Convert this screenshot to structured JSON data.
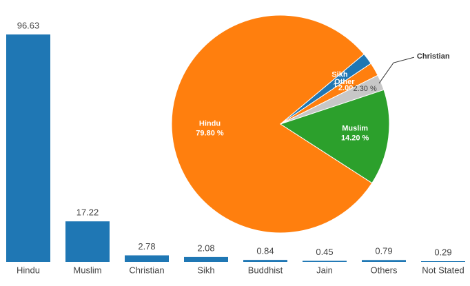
{
  "chart_data": [
    {
      "type": "bar",
      "categories": [
        "Hindu",
        "Muslim",
        "Christian",
        "Sikh",
        "Buddhist",
        "Jain",
        "Others",
        "Not Stated"
      ],
      "values": [
        96.63,
        17.22,
        2.78,
        2.08,
        0.84,
        0.45,
        0.79,
        0.29
      ],
      "color": "#1f77b4",
      "ylim": [
        0,
        100
      ]
    },
    {
      "type": "pie",
      "categories": [
        "Hindu",
        "Sikh",
        "Other",
        "Christian",
        "Muslim"
      ],
      "values": [
        79.8,
        1.7,
        2.0,
        2.3,
        14.2
      ],
      "value_labels": [
        "79.80 %",
        "1.70 %",
        "2.00 %",
        "2.30 %",
        "14.20 %"
      ],
      "colors": [
        "#ff7f0e",
        "#1f77b4",
        "#ff7f0e",
        "#c7c7c7",
        "#2ca02c"
      ]
    }
  ]
}
